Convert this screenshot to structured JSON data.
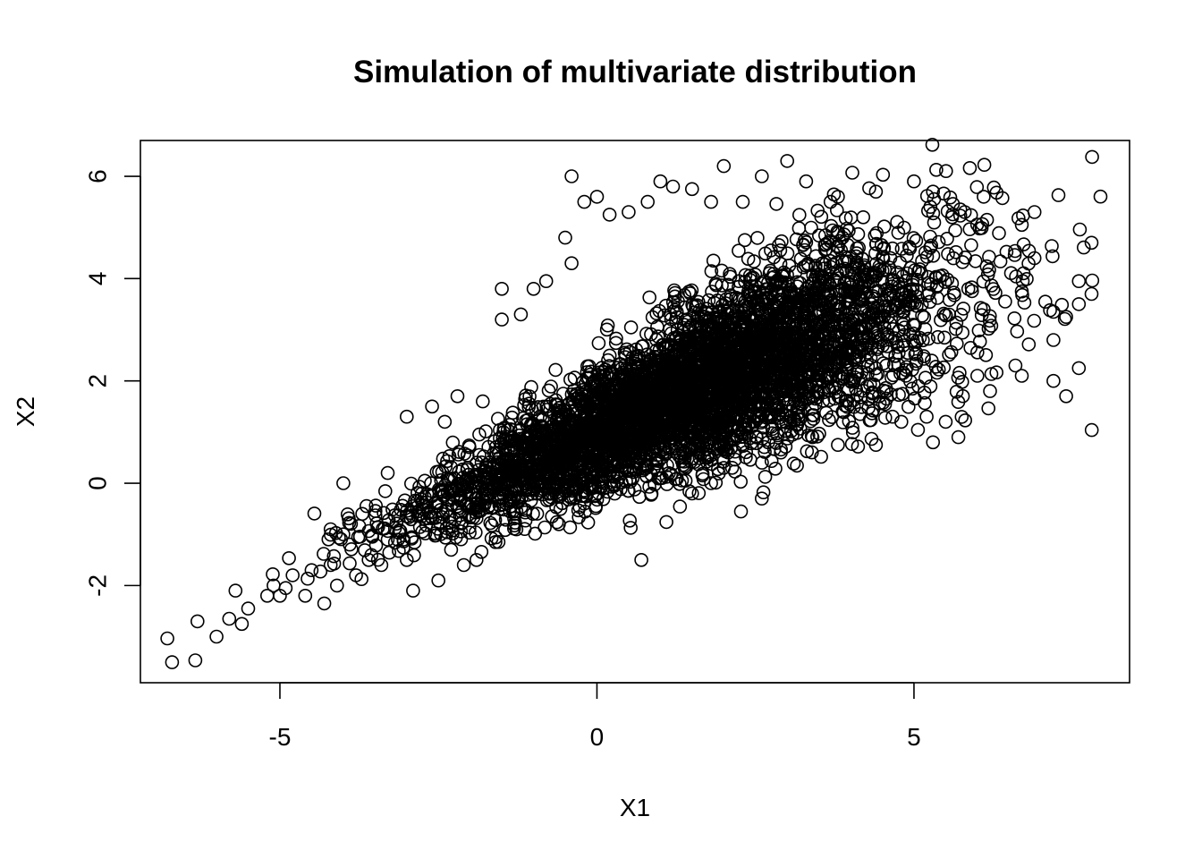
{
  "chart_data": {
    "type": "scatter",
    "title": "Simulation of multivariate distribution",
    "xlabel": "X1",
    "ylabel": "X2",
    "xlim": [
      -7.2,
      8.4
    ],
    "ylim": [
      -3.9,
      6.7
    ],
    "x_ticks": [
      {
        "value": -5,
        "label": "-5"
      },
      {
        "value": 0,
        "label": "0"
      },
      {
        "value": 5,
        "label": "5"
      }
    ],
    "y_ticks": [
      {
        "value": -2,
        "label": "-2"
      },
      {
        "value": 0,
        "label": "0"
      },
      {
        "value": 2,
        "label": "2"
      },
      {
        "value": 4,
        "label": "4"
      },
      {
        "value": 6,
        "label": "6"
      }
    ],
    "grid": false,
    "legend": "none",
    "marker": "open-circle",
    "point_count_estimate": 5000,
    "distribution_summary": {
      "approx_mean_x1": 1.5,
      "approx_mean_x2": 2.2,
      "approx_sd_x1": 2.0,
      "approx_sd_x2": 1.4,
      "approx_correlation": 0.72
    },
    "points": [
      [
        -6.7,
        -3.5
      ],
      [
        -6.3,
        -2.7
      ],
      [
        -6.0,
        -3.0
      ],
      [
        -5.8,
        -2.65
      ],
      [
        -5.7,
        -2.1
      ],
      [
        -5.6,
        -2.75
      ],
      [
        -5.5,
        -2.45
      ],
      [
        -5.2,
        -2.2
      ],
      [
        -5.1,
        -2.0
      ],
      [
        -5.0,
        -2.2
      ],
      [
        -4.8,
        -1.8
      ],
      [
        -4.5,
        -1.7
      ],
      [
        -4.6,
        -2.2
      ],
      [
        -4.3,
        -2.35
      ],
      [
        -4.2,
        -1.6
      ],
      [
        -4.1,
        -2.0
      ],
      [
        -4.2,
        -0.9
      ],
      [
        -3.9,
        -1.2
      ],
      [
        -4.0,
        -1.0
      ],
      [
        -3.8,
        -1.8
      ],
      [
        -3.7,
        -0.6
      ],
      [
        -3.6,
        -1.5
      ],
      [
        -4.0,
        -0.0
      ],
      [
        -3.4,
        -1.6
      ],
      [
        -3.3,
        0.2
      ],
      [
        -3.0,
        1.3
      ],
      [
        -2.9,
        -2.1
      ],
      [
        -3.0,
        -1.5
      ],
      [
        -2.6,
        1.5
      ],
      [
        -2.5,
        -1.9
      ],
      [
        -2.4,
        1.2
      ],
      [
        -2.2,
        1.7
      ],
      [
        -2.1,
        -1.6
      ],
      [
        -1.9,
        -1.5
      ],
      [
        -1.8,
        1.6
      ],
      [
        -1.5,
        3.2
      ],
      [
        -1.5,
        3.8
      ],
      [
        -1.2,
        3.3
      ],
      [
        -1.0,
        3.8
      ],
      [
        -0.8,
        3.95
      ],
      [
        -0.5,
        4.8
      ],
      [
        -0.4,
        4.3
      ],
      [
        -0.4,
        6.0
      ],
      [
        -0.2,
        5.5
      ],
      [
        0.0,
        5.6
      ],
      [
        0.2,
        5.25
      ],
      [
        0.5,
        5.3
      ],
      [
        0.8,
        5.5
      ],
      [
        1.0,
        5.9
      ],
      [
        1.2,
        5.8
      ],
      [
        1.5,
        5.75
      ],
      [
        1.8,
        5.5
      ],
      [
        2.0,
        6.2
      ],
      [
        2.3,
        5.5
      ],
      [
        2.6,
        6.0
      ],
      [
        3.0,
        6.3
      ],
      [
        3.3,
        5.9
      ],
      [
        3.8,
        5.6
      ],
      [
        4.2,
        5.2
      ],
      [
        4.4,
        5.7
      ],
      [
        5.0,
        5.9
      ],
      [
        5.3,
        5.7
      ],
      [
        5.6,
        5.2
      ],
      [
        5.8,
        5.3
      ],
      [
        6.1,
        5.6
      ],
      [
        6.7,
        5.05
      ],
      [
        6.9,
        5.3
      ],
      [
        7.8,
        4.7
      ],
      [
        6.9,
        4.4
      ],
      [
        6.7,
        3.75
      ],
      [
        7.2,
        3.35
      ],
      [
        7.4,
        3.25
      ],
      [
        7.6,
        3.95
      ],
      [
        7.6,
        3.5
      ],
      [
        7.8,
        3.7
      ],
      [
        7.2,
        2.8
      ],
      [
        7.6,
        2.25
      ],
      [
        7.2,
        2.0
      ],
      [
        7.4,
        1.7
      ],
      [
        6.6,
        2.3
      ],
      [
        6.7,
        2.1
      ],
      [
        6.2,
        1.8
      ],
      [
        6.0,
        2.1
      ],
      [
        6.1,
        3.4
      ],
      [
        5.7,
        0.9
      ],
      [
        5.5,
        1.2
      ],
      [
        5.3,
        0.8
      ],
      [
        5.2,
        1.3
      ],
      [
        4.8,
        1.2
      ],
      [
        4.4,
        0.75
      ],
      [
        3.8,
        0.75
      ],
      [
        3.4,
        0.9
      ],
      [
        2.9,
        0.6
      ],
      [
        2.7,
        0.8
      ],
      [
        2.6,
        -0.3
      ],
      [
        2.0,
        0.3
      ],
      [
        1.8,
        0.0
      ],
      [
        1.5,
        -0.2
      ],
      [
        1.0,
        0.1
      ],
      [
        0.7,
        -1.5
      ],
      [
        0.5,
        -0.15
      ],
      [
        -0.2,
        -0.4
      ],
      [
        -0.6,
        -0.8
      ],
      [
        -1.3,
        -0.6
      ],
      [
        -1.6,
        -1.15
      ],
      [
        -2.3,
        -1.3
      ],
      [
        -2.8,
        -0.6
      ]
    ]
  }
}
